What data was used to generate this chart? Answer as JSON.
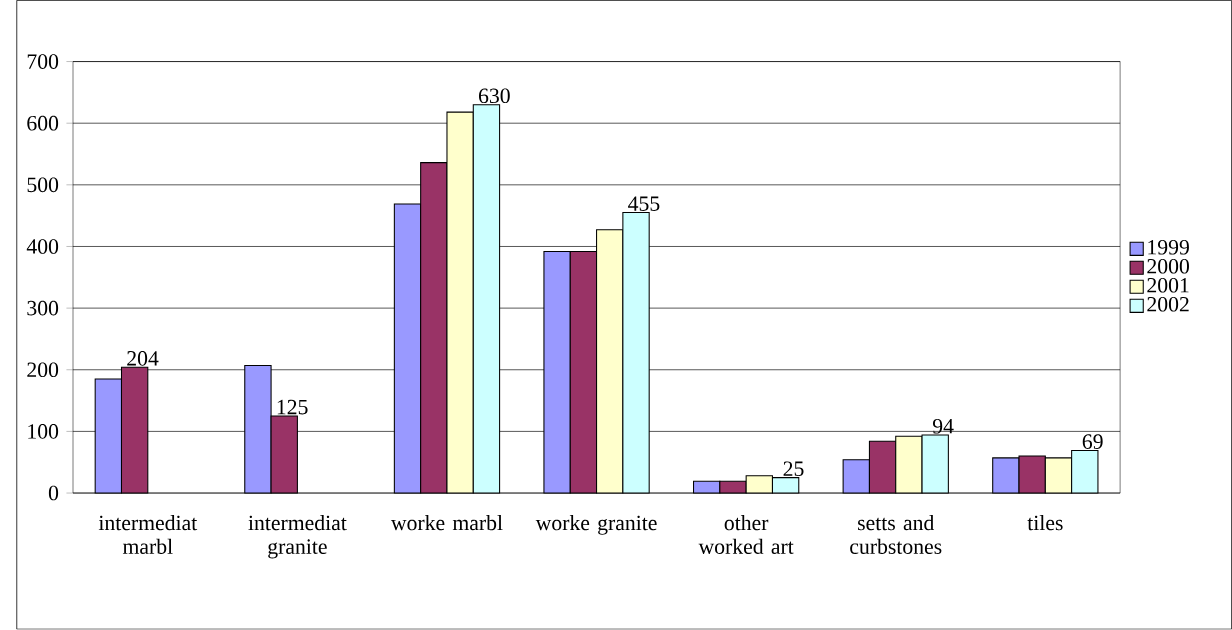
{
  "chart_data": {
    "type": "bar",
    "categories": [
      "intermediat marbl",
      "intermediat granite",
      "worke marbl",
      "worke granite",
      "other worked art",
      "setts and curbstones",
      "tiles"
    ],
    "series": [
      {
        "name": "1999",
        "color": "#9999ff",
        "values": [
          185,
          207,
          469,
          392,
          19,
          54,
          57
        ]
      },
      {
        "name": "2000",
        "color": "#993366",
        "values": [
          204,
          125,
          536,
          392,
          19,
          84,
          60
        ],
        "value_labels": [
          "204",
          "125",
          null,
          null,
          null,
          null,
          null
        ]
      },
      {
        "name": "2001",
        "color": "#ffffcc",
        "values": [
          null,
          null,
          618,
          427,
          28,
          92,
          57
        ]
      },
      {
        "name": "2002",
        "color": "#ccffff",
        "values": [
          null,
          null,
          630,
          455,
          25,
          94,
          69
        ],
        "value_labels": [
          null,
          null,
          "630",
          "455",
          "25",
          "94",
          "69"
        ]
      }
    ],
    "ylim": [
      0,
      700
    ],
    "yticks": [
      0,
      100,
      200,
      300,
      400,
      500,
      600,
      700
    ],
    "grid": "y",
    "legend": "right"
  }
}
